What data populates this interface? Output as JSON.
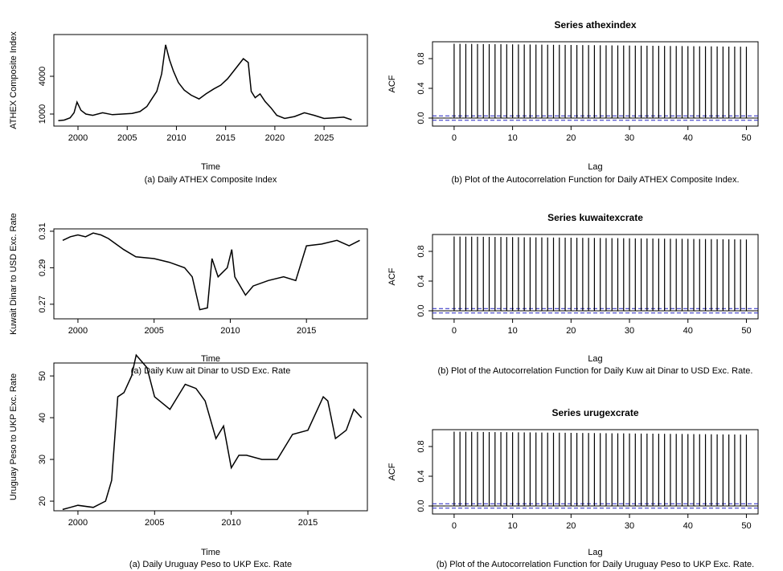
{
  "chart_data": [
    {
      "type": "line",
      "xlabel": "Time",
      "ylabel": "ATHEX Composite Index",
      "caption": "(a) Daily ATHEX Composite Index",
      "color": "#000000",
      "x": [
        1998,
        1998.6,
        1999.2,
        1999.6,
        1999.9,
        2000.3,
        2000.8,
        2001.5,
        2002.5,
        2003.5,
        2004.5,
        2005.5,
        2006.3,
        2007,
        2007.5,
        2008,
        2008.5,
        2008.9,
        2009.3,
        2009.7,
        2010.2,
        2010.8,
        2011.5,
        2012.3,
        2013,
        2013.8,
        2014.5,
        2015.2,
        2016,
        2016.8,
        2017.3,
        2017.6,
        2018,
        2018.5,
        2019,
        2019.6,
        2020.2,
        2021,
        2022,
        2023,
        2024,
        2025,
        2026,
        2027,
        2027.8
      ],
      "values": [
        480,
        520,
        700,
        1100,
        1950,
        1300,
        1000,
        900,
        1100,
        950,
        1000,
        1050,
        1200,
        1600,
        2200,
        2800,
        4200,
        6500,
        5300,
        4400,
        3500,
        2900,
        2500,
        2200,
        2600,
        3000,
        3300,
        3800,
        4600,
        5400,
        5100,
        2800,
        2300,
        2600,
        2000,
        1500,
        900,
        650,
        800,
        1100,
        900,
        650,
        700,
        750,
        550
      ],
      "xlim": [
        1997.55,
        2029.4
      ],
      "xticks": [
        2000,
        2005,
        2010,
        2015,
        2020,
        2025
      ],
      "ylim": [
        43,
        7318
      ],
      "yticks": [
        1000,
        4000
      ]
    },
    {
      "type": "stem",
      "title": "Series athexindex",
      "xlabel": "Lag",
      "ylabel": "ACF",
      "caption": "(b) Plot of the Autocorrelation Function for Daily ATHEX Composite Index.",
      "color": "#000000",
      "x": [
        0,
        1,
        2,
        3,
        4,
        5,
        6,
        7,
        8,
        9,
        10,
        11,
        12,
        13,
        14,
        15,
        16,
        17,
        18,
        19,
        20,
        21,
        22,
        23,
        24,
        25,
        26,
        27,
        28,
        29,
        30,
        31,
        32,
        33,
        34,
        35,
        36,
        37,
        38,
        39,
        40,
        41,
        42,
        43,
        44,
        45,
        46,
        47,
        48,
        49,
        50
      ],
      "values": [
        1,
        0.999,
        0.998,
        0.998,
        0.997,
        0.996,
        0.995,
        0.994,
        0.994,
        0.993,
        0.992,
        0.991,
        0.99,
        0.99,
        0.989,
        0.988,
        0.987,
        0.986,
        0.986,
        0.985,
        0.984,
        0.983,
        0.982,
        0.982,
        0.981,
        0.98,
        0.979,
        0.978,
        0.978,
        0.977,
        0.976,
        0.975,
        0.974,
        0.974,
        0.973,
        0.972,
        0.971,
        0.97,
        0.97,
        0.969,
        0.968,
        0.967,
        0.966,
        0.966,
        0.965,
        0.964,
        0.963,
        0.962,
        0.962,
        0.961,
        0.96
      ],
      "confidence_band": [
        -0.03,
        0.03
      ],
      "confidence_color": "#2020c0",
      "xlim": [
        -3.7,
        52
      ],
      "xticks": [
        0,
        10,
        20,
        30,
        40,
        50
      ],
      "ylim": [
        -0.108,
        1.027
      ],
      "yticks": [
        {
          "value": 0,
          "label": "0.0"
        },
        0.4,
        0.8
      ]
    },
    {
      "type": "line",
      "xlabel": "Time",
      "ylabel": "Kuwait Dinar to USD Exc. Rate",
      "caption": "(a) Daily Kuw ait Dinar to USD Exc. Rate",
      "color": "#000000",
      "x": [
        1999,
        1999.5,
        2000,
        2000.5,
        2001,
        2001.5,
        2002,
        2002.5,
        2003,
        2003.8,
        2005,
        2006,
        2007,
        2007.5,
        2008,
        2008.5,
        2008.8,
        2009.2,
        2009.8,
        2010.1,
        2010.3,
        2011,
        2011.5,
        2012.5,
        2013.5,
        2014.3,
        2015,
        2016,
        2017,
        2017.8,
        2018.5
      ],
      "values": [
        0.305,
        0.307,
        0.308,
        0.307,
        0.309,
        0.308,
        0.306,
        0.303,
        0.3,
        0.296,
        0.295,
        0.293,
        0.29,
        0.285,
        0.267,
        0.268,
        0.295,
        0.285,
        0.29,
        0.3,
        0.285,
        0.275,
        0.28,
        0.283,
        0.285,
        0.283,
        0.302,
        0.303,
        0.305,
        0.302,
        0.305
      ],
      "xlim": [
        1998.42,
        2019
      ],
      "xticks": [
        2000,
        2005,
        2010,
        2015
      ],
      "ylim": [
        0.262,
        0.3113
      ],
      "yticks": [
        0.27,
        0.29,
        0.31
      ]
    },
    {
      "type": "stem",
      "title": "Series kuwaitexcrate",
      "xlabel": "Lag",
      "ylabel": "ACF",
      "caption": "(b) Plot of the Autocorrelation Function for Daily Kuw ait Dinar to USD Exc. Rate.",
      "color": "#000000",
      "x": [
        0,
        1,
        2,
        3,
        4,
        5,
        6,
        7,
        8,
        9,
        10,
        11,
        12,
        13,
        14,
        15,
        16,
        17,
        18,
        19,
        20,
        21,
        22,
        23,
        24,
        25,
        26,
        27,
        28,
        29,
        30,
        31,
        32,
        33,
        34,
        35,
        36,
        37,
        38,
        39,
        40,
        41,
        42,
        43,
        44,
        45,
        46,
        47,
        48,
        49,
        50
      ],
      "values": [
        1,
        0.999,
        0.998,
        0.998,
        0.997,
        0.996,
        0.995,
        0.994,
        0.994,
        0.993,
        0.992,
        0.991,
        0.99,
        0.99,
        0.989,
        0.988,
        0.987,
        0.986,
        0.986,
        0.985,
        0.984,
        0.983,
        0.982,
        0.982,
        0.981,
        0.98,
        0.979,
        0.978,
        0.978,
        0.977,
        0.976,
        0.975,
        0.974,
        0.974,
        0.973,
        0.972,
        0.971,
        0.97,
        0.97,
        0.969,
        0.968,
        0.967,
        0.966,
        0.966,
        0.965,
        0.964,
        0.963,
        0.962,
        0.962,
        0.961,
        0.96
      ],
      "confidence_band": [
        -0.03,
        0.03
      ],
      "confidence_color": "#2020c0",
      "xlim": [
        -3.7,
        52
      ],
      "xticks": [
        0,
        10,
        20,
        30,
        40,
        50
      ],
      "ylim": [
        -0.108,
        1.027
      ],
      "yticks": [
        {
          "value": 0,
          "label": "0.0"
        },
        0.4,
        0.8
      ]
    },
    {
      "type": "line",
      "xlabel": "Time",
      "ylabel": "Uruguay Peso to UKP Exc. Rate",
      "caption": "(a) Daily Uruguay Peso to UKP Exc. Rate",
      "color": "#000000",
      "x": [
        1999,
        1999.5,
        2000,
        2001,
        2001.8,
        2002.2,
        2002.4,
        2002.6,
        2003,
        2003.5,
        2003.8,
        2004.5,
        2005,
        2006,
        2007,
        2007.7,
        2008.3,
        2009,
        2009.5,
        2010,
        2010.5,
        2011,
        2012,
        2013,
        2014,
        2015,
        2016,
        2016.3,
        2016.8,
        2017.5,
        2018,
        2018.5
      ],
      "values": [
        18,
        18.5,
        19,
        18.5,
        20,
        25,
        35,
        45,
        46,
        50,
        55,
        52,
        45,
        42,
        48,
        47,
        44,
        35,
        38,
        28,
        31,
        31,
        30,
        30,
        36,
        37,
        45,
        44,
        35,
        37,
        42,
        40
      ],
      "xlim": [
        1998.43,
        2018.88
      ],
      "xticks": [
        2000,
        2005,
        2010,
        2015
      ],
      "ylim": [
        17.7,
        53.1
      ],
      "yticks": [
        20,
        30,
        40,
        50
      ]
    },
    {
      "type": "stem",
      "title": "Series urugexcrate",
      "xlabel": "Lag",
      "ylabel": "ACF",
      "caption": "(b) Plot of the Autocorrelation Function for Daily Uruguay Peso to UKP Exc. Rate.",
      "color": "#000000",
      "x": [
        0,
        1,
        2,
        3,
        4,
        5,
        6,
        7,
        8,
        9,
        10,
        11,
        12,
        13,
        14,
        15,
        16,
        17,
        18,
        19,
        20,
        21,
        22,
        23,
        24,
        25,
        26,
        27,
        28,
        29,
        30,
        31,
        32,
        33,
        34,
        35,
        36,
        37,
        38,
        39,
        40,
        41,
        42,
        43,
        44,
        45,
        46,
        47,
        48,
        49,
        50
      ],
      "values": [
        1,
        0.999,
        0.998,
        0.998,
        0.997,
        0.996,
        0.995,
        0.994,
        0.994,
        0.993,
        0.992,
        0.991,
        0.99,
        0.99,
        0.989,
        0.988,
        0.987,
        0.986,
        0.986,
        0.985,
        0.984,
        0.983,
        0.982,
        0.982,
        0.981,
        0.98,
        0.979,
        0.978,
        0.978,
        0.977,
        0.976,
        0.975,
        0.974,
        0.974,
        0.973,
        0.972,
        0.971,
        0.97,
        0.97,
        0.969,
        0.968,
        0.967,
        0.966,
        0.966,
        0.965,
        0.964,
        0.963,
        0.962,
        0.962,
        0.961,
        0.96
      ],
      "confidence_band": [
        -0.03,
        0.03
      ],
      "confidence_color": "#2020c0",
      "xlim": [
        -3.7,
        52
      ],
      "xticks": [
        0,
        10,
        20,
        30,
        40,
        50
      ],
      "ylim": [
        -0.108,
        1.027
      ],
      "yticks": [
        {
          "value": 0,
          "label": "0.0"
        },
        0.4,
        0.8
      ]
    }
  ]
}
